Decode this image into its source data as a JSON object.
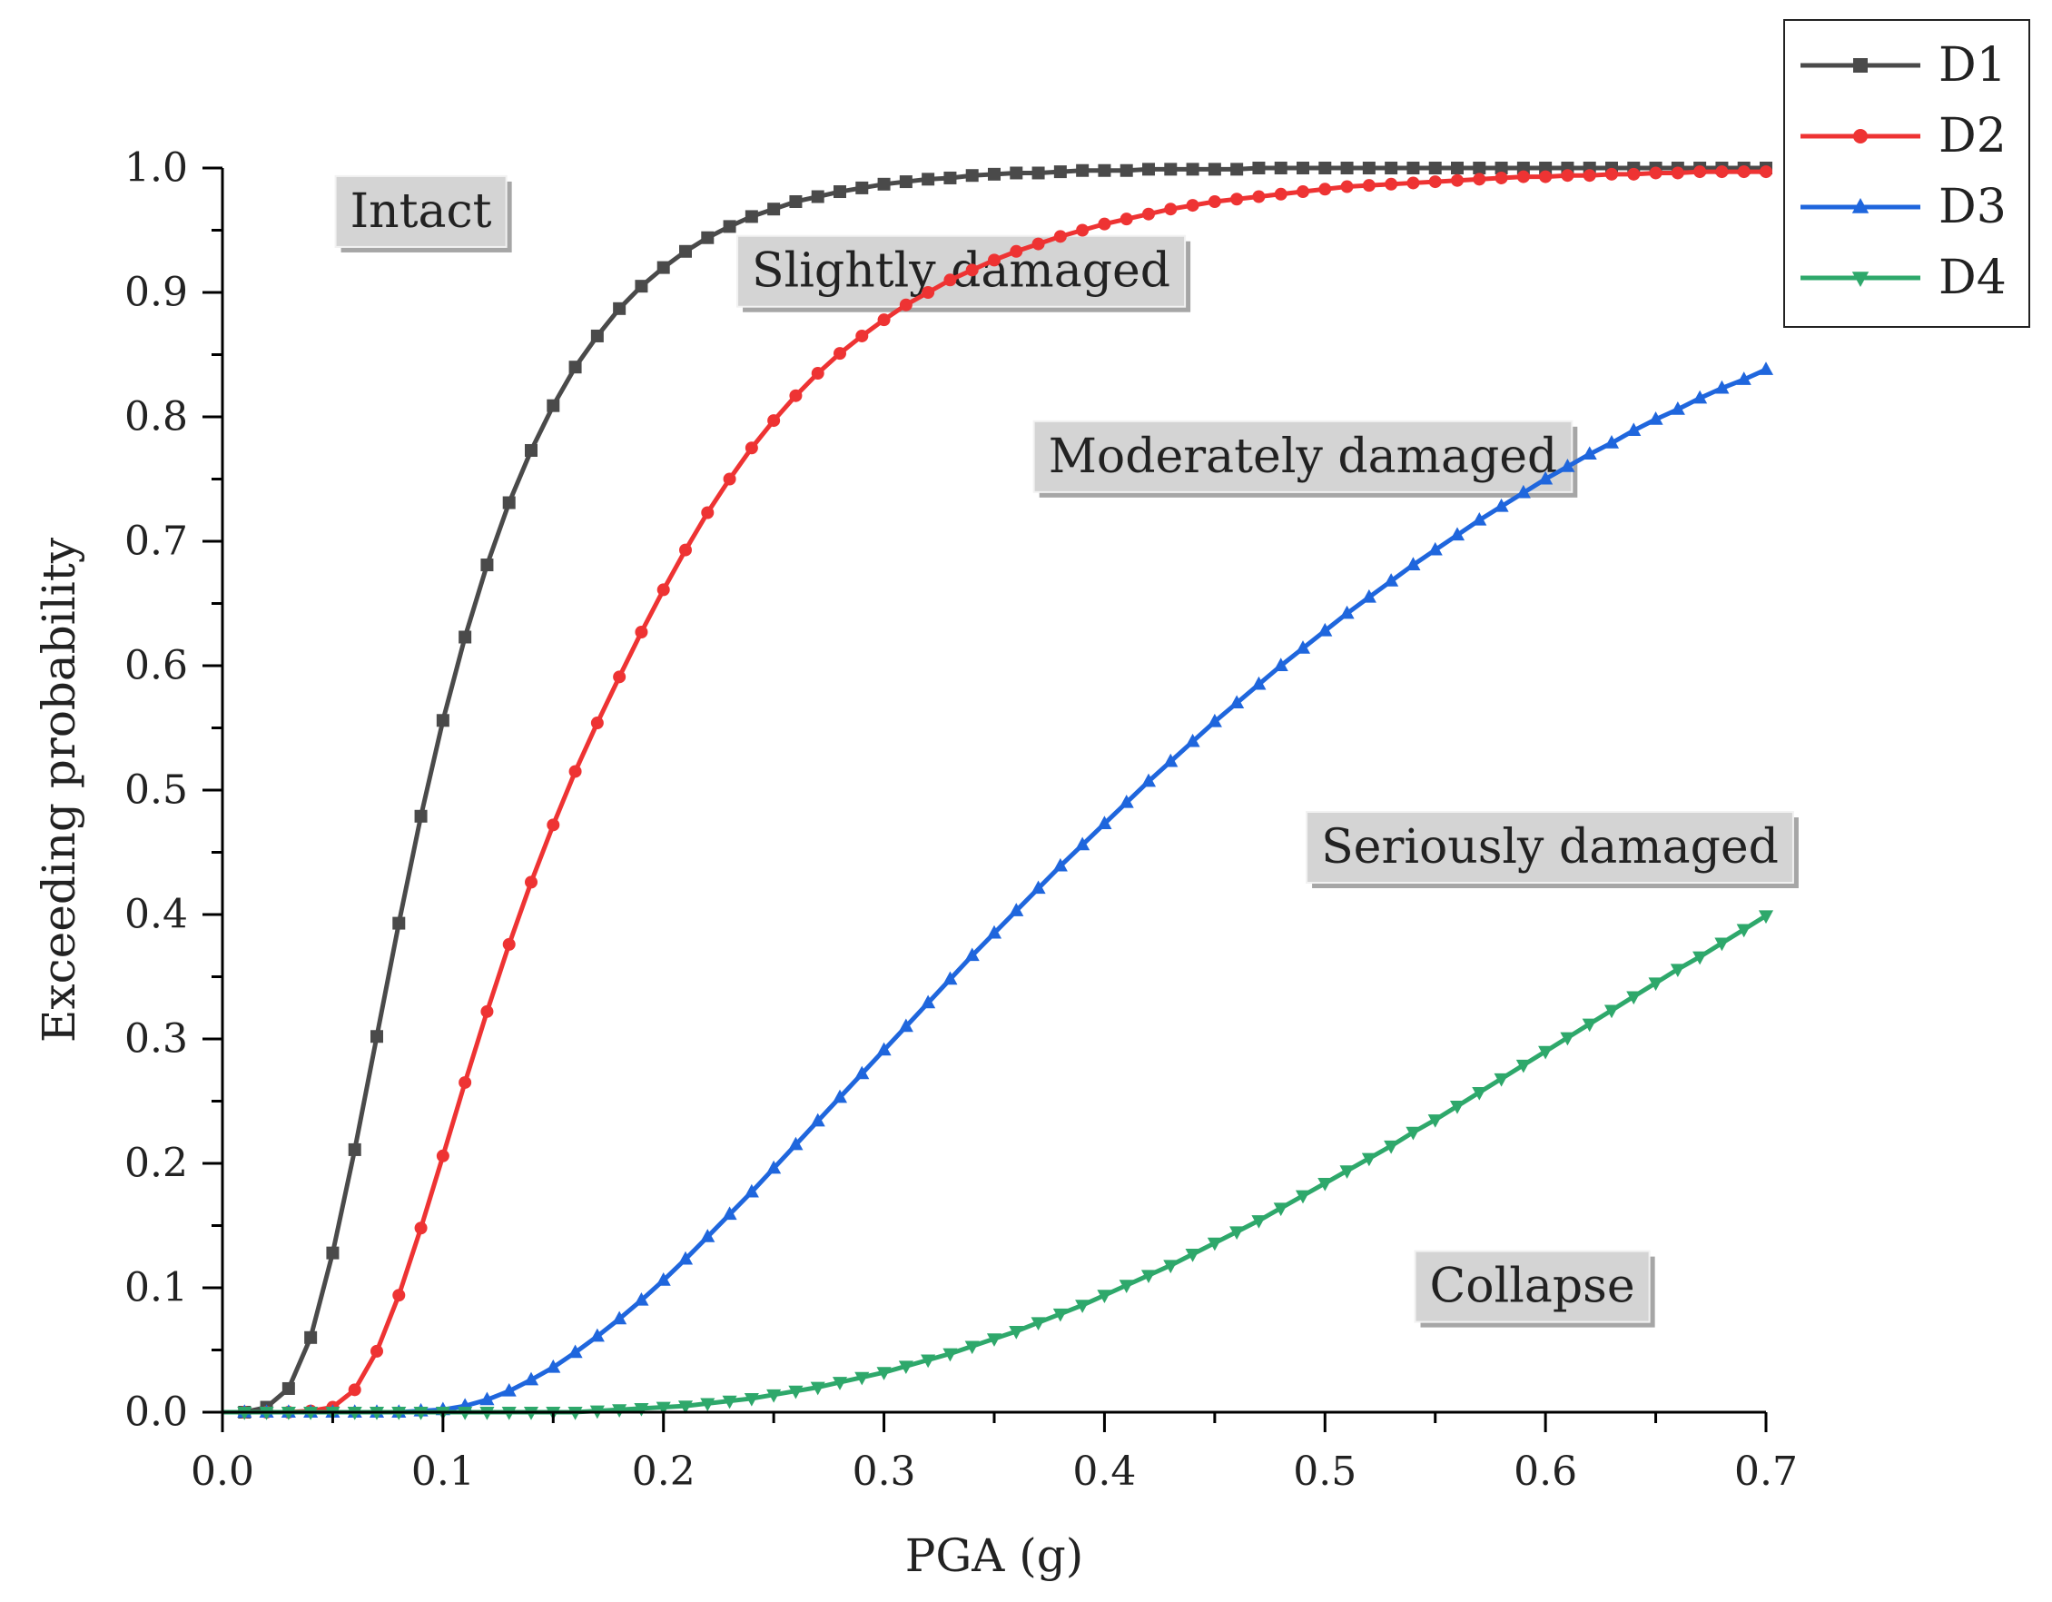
{
  "chart_data": {
    "type": "line",
    "title": "",
    "xlabel": "PGA (g)",
    "ylabel": "Exceeding probability",
    "xlim": [
      0.0,
      0.7
    ],
    "ylim": [
      0.0,
      1.0
    ],
    "xticks": [
      "0.0",
      "0.1",
      "0.2",
      "0.3",
      "0.4",
      "0.5",
      "0.6",
      "0.7"
    ],
    "yticks": [
      "0.0",
      "0.1",
      "0.2",
      "0.3",
      "0.4",
      "0.5",
      "0.6",
      "0.7",
      "0.8",
      "0.9",
      "1.0"
    ],
    "grid": false,
    "legend_position": "top-right",
    "x_step": 0.01,
    "series": [
      {
        "name": "D1",
        "color": "#4a4a4a",
        "marker": "square",
        "values": [
          0.0,
          0.0,
          0.004,
          0.019,
          0.06,
          0.128,
          0.211,
          0.302,
          0.393,
          0.479,
          0.556,
          0.623,
          0.681,
          0.731,
          0.773,
          0.809,
          0.84,
          0.865,
          0.887,
          0.905,
          0.92,
          0.933,
          0.944,
          0.953,
          0.961,
          0.967,
          0.973,
          0.977,
          0.981,
          0.984,
          0.987,
          0.989,
          0.991,
          0.992,
          0.994,
          0.995,
          0.996,
          0.996,
          0.997,
          0.998,
          0.998,
          0.998,
          0.999,
          0.999,
          0.999,
          0.999,
          0.999,
          1.0,
          1.0,
          1.0,
          1.0,
          1.0,
          1.0,
          1.0,
          1.0,
          1.0,
          1.0,
          1.0,
          1.0,
          1.0,
          1.0,
          1.0,
          1.0,
          1.0,
          1.0,
          1.0,
          1.0,
          1.0,
          1.0,
          1.0,
          1.0
        ]
      },
      {
        "name": "D2",
        "color": "#ee3333",
        "marker": "circle",
        "values": [
          0.0,
          0.0,
          0.0,
          0.0,
          0.001,
          0.004,
          0.018,
          0.049,
          0.094,
          0.148,
          0.206,
          0.265,
          0.322,
          0.376,
          0.426,
          0.472,
          0.515,
          0.554,
          0.591,
          0.627,
          0.661,
          0.693,
          0.723,
          0.75,
          0.775,
          0.797,
          0.817,
          0.835,
          0.851,
          0.865,
          0.878,
          0.89,
          0.9,
          0.91,
          0.918,
          0.926,
          0.933,
          0.939,
          0.945,
          0.95,
          0.955,
          0.959,
          0.963,
          0.967,
          0.97,
          0.973,
          0.975,
          0.977,
          0.979,
          0.981,
          0.983,
          0.985,
          0.986,
          0.987,
          0.988,
          0.989,
          0.99,
          0.991,
          0.992,
          0.993,
          0.993,
          0.994,
          0.994,
          0.995,
          0.995,
          0.996,
          0.996,
          0.997,
          0.997,
          0.997,
          0.997
        ]
      },
      {
        "name": "D3",
        "color": "#1f66dd",
        "marker": "triangle-up",
        "values": [
          0.0,
          0.0,
          0.0,
          0.0,
          0.0,
          0.0,
          0.0,
          0.0,
          0.0,
          0.001,
          0.002,
          0.005,
          0.01,
          0.017,
          0.026,
          0.036,
          0.048,
          0.061,
          0.075,
          0.09,
          0.106,
          0.123,
          0.141,
          0.159,
          0.177,
          0.196,
          0.215,
          0.234,
          0.253,
          0.272,
          0.291,
          0.31,
          0.329,
          0.348,
          0.367,
          0.385,
          0.403,
          0.421,
          0.439,
          0.456,
          0.473,
          0.49,
          0.507,
          0.523,
          0.539,
          0.555,
          0.57,
          0.585,
          0.6,
          0.614,
          0.628,
          0.642,
          0.655,
          0.668,
          0.681,
          0.693,
          0.705,
          0.717,
          0.728,
          0.739,
          0.75,
          0.76,
          0.77,
          0.779,
          0.789,
          0.798,
          0.806,
          0.815,
          0.823,
          0.83,
          0.838
        ]
      },
      {
        "name": "D4",
        "color": "#2ea86b",
        "marker": "triangle-down",
        "values": [
          0.0,
          0.0,
          0.0,
          0.0,
          0.0,
          0.0,
          0.0,
          0.0,
          0.0,
          0.0,
          0.0,
          0.0,
          0.0,
          0.0,
          0.0,
          0.0,
          0.0,
          0.001,
          0.002,
          0.003,
          0.004,
          0.005,
          0.007,
          0.009,
          0.011,
          0.014,
          0.017,
          0.02,
          0.024,
          0.028,
          0.032,
          0.037,
          0.042,
          0.047,
          0.053,
          0.059,
          0.065,
          0.072,
          0.079,
          0.086,
          0.094,
          0.102,
          0.11,
          0.118,
          0.127,
          0.136,
          0.145,
          0.154,
          0.164,
          0.174,
          0.184,
          0.194,
          0.204,
          0.214,
          0.225,
          0.235,
          0.246,
          0.257,
          0.268,
          0.279,
          0.29,
          0.301,
          0.312,
          0.323,
          0.334,
          0.345,
          0.356,
          0.366,
          0.377,
          0.388,
          0.399
        ]
      }
    ],
    "annotations": [
      {
        "text": "Intact",
        "x": 0.09,
        "y": 0.965
      },
      {
        "text": "Slightly damaged",
        "x": 0.335,
        "y": 0.917
      },
      {
        "text": "Moderately damaged",
        "x": 0.49,
        "y": 0.768
      },
      {
        "text": "Seriously damaged",
        "x": 0.602,
        "y": 0.454
      },
      {
        "text": "Collapse",
        "x": 0.594,
        "y": 0.101
      }
    ]
  }
}
